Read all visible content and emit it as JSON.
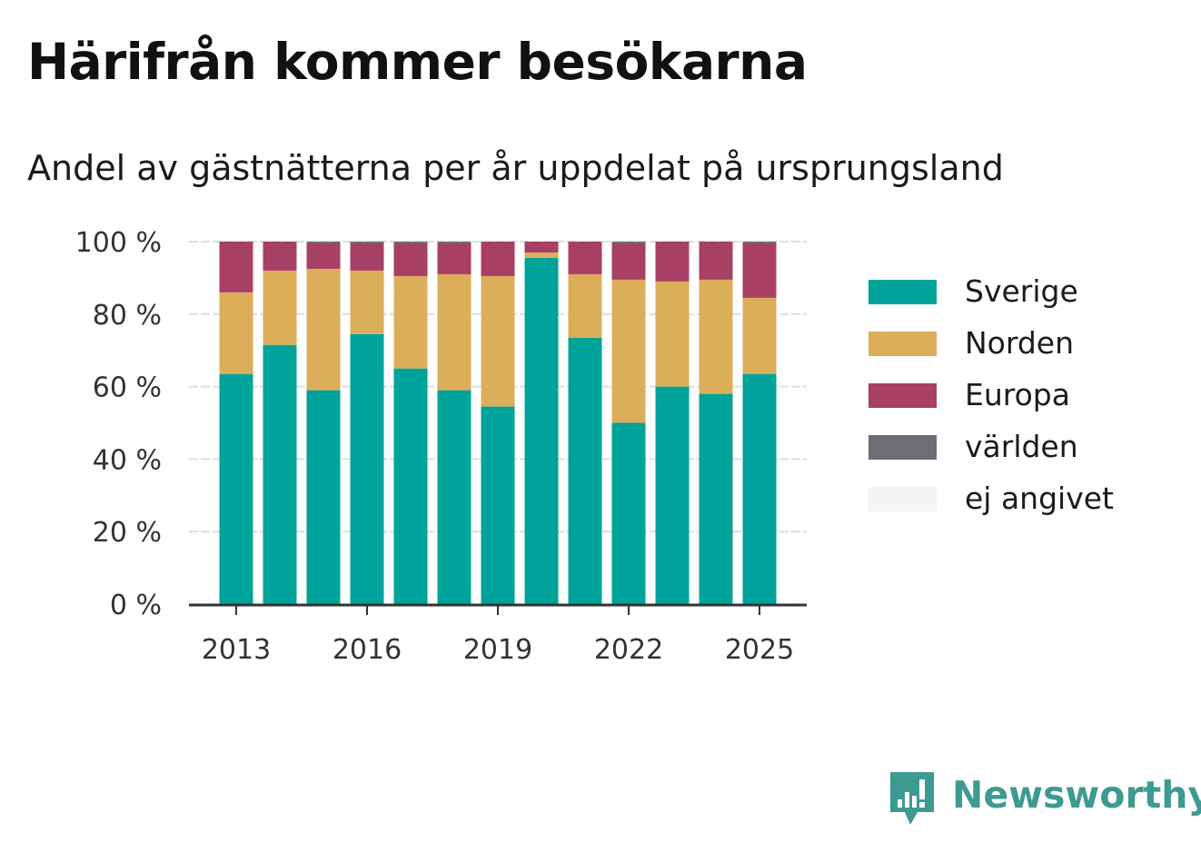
{
  "header": {
    "title": "Härifrån kommer besökarna",
    "subtitle": "Andel av gästnätterna per år uppdelat på ursprungsland"
  },
  "brand": {
    "name": "Newsworthy",
    "icon": "newsworthy-chart-icon",
    "color": "#3d9a92"
  },
  "chart_data": {
    "type": "bar",
    "stacked": true,
    "x": [
      2013,
      2014,
      2015,
      2016,
      2017,
      2018,
      2019,
      2020,
      2021,
      2022,
      2023,
      2024,
      2025
    ],
    "x_tick_labels": [
      "2013",
      "2016",
      "2019",
      "2022",
      "2025"
    ],
    "y_tick_labels": [
      "0 %",
      "20 %",
      "40 %",
      "60 %",
      "80 %",
      "100 %"
    ],
    "ylim": [
      0,
      100
    ],
    "grid": true,
    "legend_position": "right",
    "series": [
      {
        "name": "Sverige",
        "color": "#00a39a",
        "values": [
          63.5,
          71.5,
          59,
          74.5,
          65,
          59,
          54.5,
          95.5,
          73.5,
          50,
          60,
          58,
          63.5
        ]
      },
      {
        "name": "Norden",
        "color": "#dcae5a",
        "values": [
          22.5,
          20.5,
          33.5,
          17.5,
          25.5,
          32,
          36,
          1.5,
          17.5,
          39.5,
          29,
          31.5,
          21
        ]
      },
      {
        "name": "Europa",
        "color": "#a83f64",
        "values": [
          14,
          8,
          7,
          7.5,
          9,
          8.5,
          9.5,
          3,
          9,
          10,
          11,
          10.5,
          15
        ]
      },
      {
        "name": "världen",
        "color": "#6d6d74",
        "values": [
          0,
          0,
          0.5,
          0.5,
          0.5,
          0.5,
          0,
          0,
          0,
          0.5,
          0,
          0,
          0.5
        ]
      },
      {
        "name": "ej angivet",
        "color": "#f4f4f2",
        "values": [
          0,
          0,
          0,
          0,
          0,
          0,
          0,
          0,
          0,
          0,
          0,
          0,
          0
        ]
      }
    ]
  }
}
